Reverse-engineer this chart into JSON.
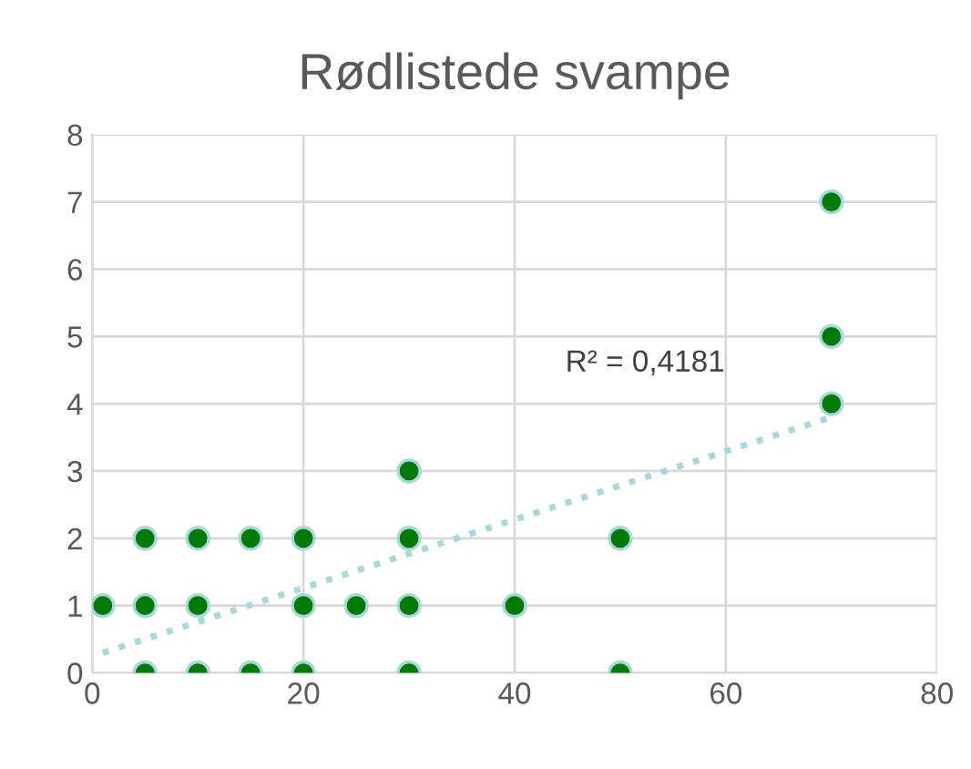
{
  "chart_data": {
    "type": "scatter",
    "title": "Rødlistede svampe",
    "series": [
      {
        "color": "#007a00",
        "x": [
          1,
          5,
          5,
          5,
          10,
          10,
          10,
          15,
          15,
          20,
          20,
          20,
          25,
          30,
          30,
          30,
          30,
          40,
          50,
          50,
          70,
          70,
          70
        ],
        "values": [
          1,
          2,
          1,
          0,
          2,
          1,
          0,
          2,
          0,
          2,
          1,
          0,
          1,
          3,
          2,
          1,
          0,
          1,
          2,
          0,
          7,
          5,
          4
        ]
      },
      {
        "type": "line",
        "color": "#a8d8dc",
        "line_style": "dotted",
        "marker": "none",
        "x": [
          1,
          70
        ],
        "values": [
          0.3,
          3.8
        ]
      }
    ],
    "annotations": [
      "R² = 0,4181"
    ],
    "xlim": [
      0,
      80
    ],
    "xticks": [
      0,
      20,
      40,
      60,
      80
    ],
    "ylim": [
      0,
      8
    ],
    "yticks": [
      0,
      1,
      2,
      3,
      4,
      5,
      6,
      7,
      8
    ],
    "grid": true,
    "marker": "circle"
  }
}
